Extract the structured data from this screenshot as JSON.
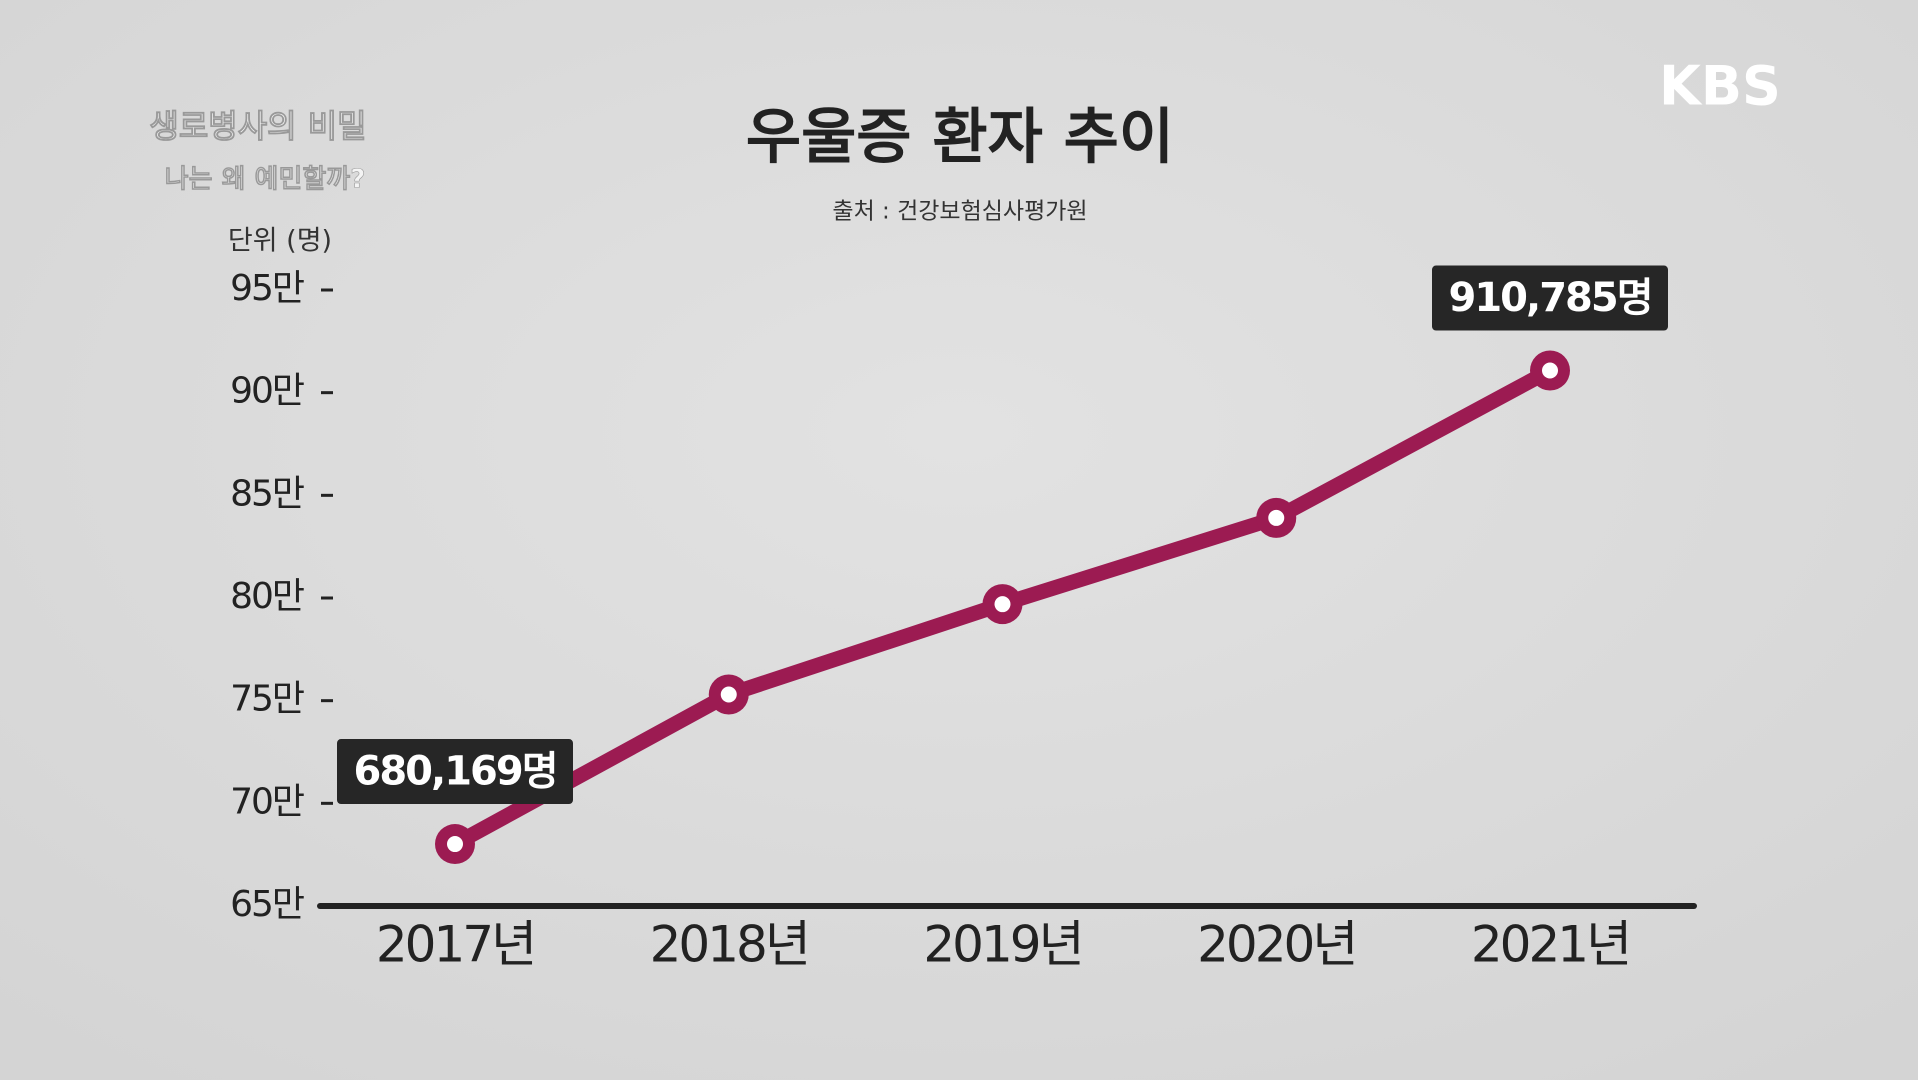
{
  "overlay": {
    "logo": "KBS",
    "program": "생로병사의 비밀",
    "episode": "나는 왜 예민할까?"
  },
  "chart_data": {
    "type": "line",
    "title": "우울증 환자 추이",
    "subtitle": "출처 : 건강보험심사평가원",
    "y_label": "단위 (명)",
    "categories": [
      "2017년",
      "2018년",
      "2019년",
      "2020년",
      "2021년"
    ],
    "values": [
      680169,
      753000,
      797000,
      839000,
      910785
    ],
    "value_labels": [
      "680,169명",
      null,
      null,
      null,
      "910,785명"
    ],
    "color": "#9c1b52",
    "ylim": [
      650000,
      950000
    ],
    "yticks": [
      {
        "value": 650000,
        "label": "65만"
      },
      {
        "value": 700000,
        "label": "70만"
      },
      {
        "value": 750000,
        "label": "75만"
      },
      {
        "value": 800000,
        "label": "80만"
      },
      {
        "value": 850000,
        "label": "85만"
      },
      {
        "value": 900000,
        "label": "90만"
      },
      {
        "value": 950000,
        "label": "95만"
      }
    ],
    "grid": false
  }
}
